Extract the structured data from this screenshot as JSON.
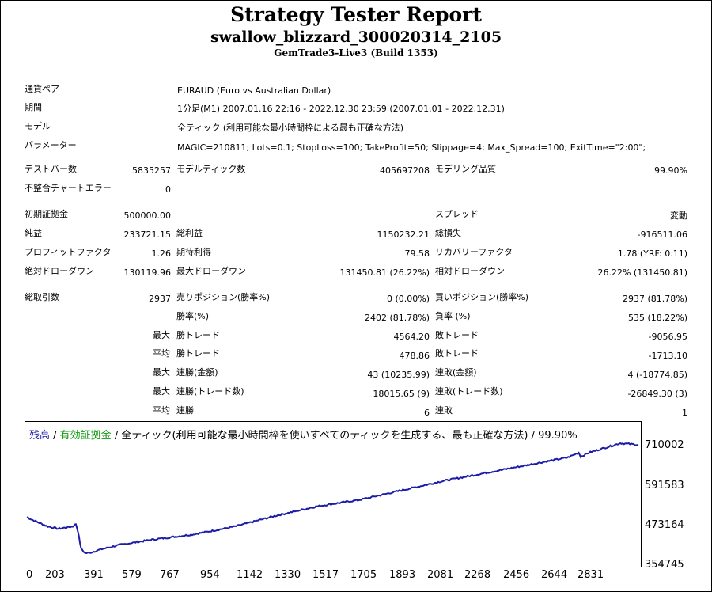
{
  "header": {
    "title": "Strategy Tester Report",
    "subtitle": "swallow_blizzard_300020314_2105",
    "server": "GemTrade3-Live3 (Build 1353)"
  },
  "info": {
    "symbol_label": "通貨ペア",
    "symbol_value": "EURAUD (Euro vs Australian Dollar)",
    "period_label": "期間",
    "period_value": "1分足(M1) 2007.01.16 22:16 - 2022.12.30 23:59 (2007.01.01 - 2022.12.31)",
    "model_label": "モデル",
    "model_value": "全ティック (利用可能な最小時間枠による最も正確な方法)",
    "params_label": "パラメーター",
    "params_value": "MAGIC=210811; Lots=0.1; StopLoss=100; TakeProfit=50; Slippage=4; Max_Spread=100; ExitTime=\"2:00\";"
  },
  "stats": {
    "bars_label": "テストバー数",
    "bars_value": "5835257",
    "ticks_label": "モデルティック数",
    "ticks_value": "405697208",
    "quality_label": "モデリング品質",
    "quality_value": "99.90%",
    "mismatch_label": "不整合チャートエラー",
    "mismatch_value": "0",
    "deposit_label": "初期証拠金",
    "deposit_value": "500000.00",
    "spread_label": "スプレッド",
    "spread_value": "変動",
    "netprofit_label": "純益",
    "netprofit_value": "233721.15",
    "grossprofit_label": "総利益",
    "grossprofit_value": "1150232.21",
    "grossloss_label": "総損失",
    "grossloss_value": "-916511.06",
    "pf_label": "プロフィットファクタ",
    "pf_value": "1.26",
    "payoff_label": "期待利得",
    "payoff_value": "79.58",
    "recovery_label": "リカバリーファクタ",
    "recovery_value": "1.78 (YRF: 0.11)",
    "absdd_label": "絶対ドローダウン",
    "absdd_value": "130119.96",
    "maxdd_label": "最大ドローダウン",
    "maxdd_value": "131450.81 (26.22%)",
    "reldd_label": "相対ドローダウン",
    "reldd_value": "26.22% (131450.81)",
    "total_label": "総取引数",
    "total_value": "2937",
    "short_label": "売りポジション(勝率%)",
    "short_value": "0 (0.00%)",
    "long_label": "買いポジション(勝率%)",
    "long_value": "2937 (81.78%)",
    "winrate_label": "勝率(%)",
    "winrate_value": "2402 (81.78%)",
    "lossrate_label": "負率 (%)",
    "lossrate_value": "535 (18.22%)",
    "max_prefix": "最大",
    "avg_prefix": "平均",
    "largest_win_label": "勝トレード",
    "largest_win_value": "4564.20",
    "largest_loss_label": "敗トレード",
    "largest_loss_value": "-9056.95",
    "avg_win_label": "勝トレード",
    "avg_win_value": "478.86",
    "avg_loss_label": "敗トレード",
    "avg_loss_value": "-1713.10",
    "maxconswin_label": "連勝(金額)",
    "maxconswin_value": "43 (10235.99)",
    "maxconsloss_label": "連敗(金額)",
    "maxconsloss_value": "4 (-18774.85)",
    "maxconsprofit_label": "連勝(トレード数)",
    "maxconsprofit_value": "18015.65 (9)",
    "maxconsloss2_label": "連敗(トレード数)",
    "maxconsloss2_value": "-26849.30 (3)",
    "avgconswin_label": "連勝",
    "avgconswin_value": "6",
    "avgconsloss_label": "連敗",
    "avgconsloss_value": "1"
  },
  "chart_data": {
    "type": "line",
    "legend_balance": "残高",
    "legend_sep1": " / ",
    "legend_equity": "有効証拠金",
    "legend_rest": " / 全ティック(利用可能な最小時間枠を使いすべてのティックを生成する、最も正確な方法) / 99.90%",
    "y_ticks": [
      "710002",
      "591583",
      "473164",
      "354745"
    ],
    "x_ticks": [
      "0",
      "203",
      "391",
      "579",
      "767",
      "954",
      "1142",
      "1330",
      "1517",
      "1705",
      "1893",
      "2081",
      "2268",
      "2456",
      "2644",
      "2831"
    ],
    "ylim": [
      354745,
      710002
    ],
    "xlim": [
      0,
      2937
    ],
    "series": [
      {
        "name": "残高",
        "color": "#1c1ca8",
        "x": [
          0,
          30,
          100,
          150,
          220,
          235,
          245,
          260,
          280,
          300,
          320,
          360,
          450,
          600,
          800,
          1000,
          1200,
          1400,
          1600,
          1800,
          2000,
          2200,
          2400,
          2600,
          2650,
          2660,
          2700,
          2850,
          2937
        ],
        "y": [
          500000,
          490000,
          470000,
          463000,
          470000,
          478000,
          455000,
          400000,
          385000,
          386000,
          390000,
          398000,
          412000,
          428000,
          445000,
          470000,
          505000,
          535000,
          555000,
          585000,
          615000,
          640000,
          665000,
          690000,
          705000,
          692000,
          705000,
          735000,
          730000
        ]
      }
    ]
  }
}
